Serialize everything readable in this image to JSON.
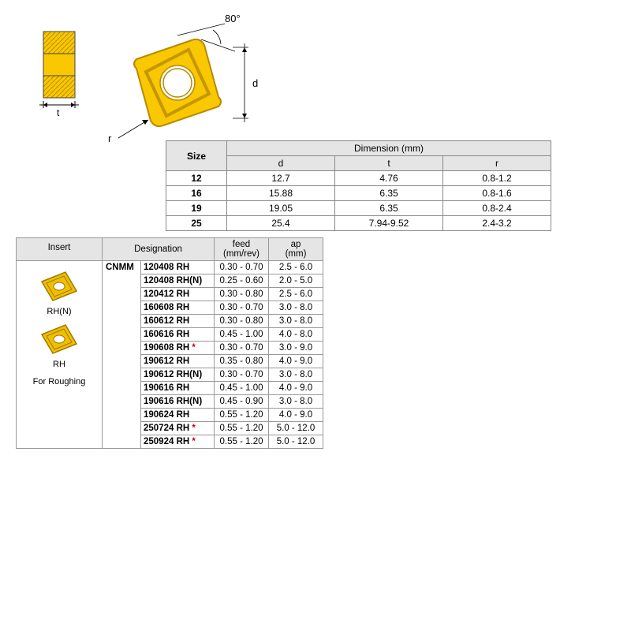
{
  "diagram": {
    "angle_label": "80°",
    "d_label": "d",
    "t_label": "t",
    "r_label": "r",
    "insert_color": "#f9c800",
    "insert_outline": "#b88a00"
  },
  "dim_table": {
    "header_size": "Size",
    "header_group": "Dimension (mm)",
    "columns": [
      "d",
      "t",
      "r"
    ],
    "rows": [
      {
        "size": "12",
        "d": "12.7",
        "t": "4.76",
        "r": "0.8-1.2"
      },
      {
        "size": "16",
        "d": "15.88",
        "t": "6.35",
        "r": "0.8-1.6"
      },
      {
        "size": "19",
        "d": "19.05",
        "t": "6.35",
        "r": "0.8-2.4"
      },
      {
        "size": "25",
        "d": "25.4",
        "t": "7.94-9.52",
        "r": "2.4-3.2"
      }
    ]
  },
  "spec_table": {
    "header_insert": "Insert",
    "header_designation": "Designation",
    "header_feed": "feed\n(mm/rev)",
    "header_ap": "ap\n(mm)",
    "group": "CNMM",
    "insert_labels": [
      "RH(N)",
      "RH",
      "For Roughing"
    ],
    "rows": [
      {
        "code": "120408 RH",
        "star": false,
        "feed": "0.30 - 0.70",
        "ap": "2.5 - 6.0"
      },
      {
        "code": "120408 RH(N)",
        "star": false,
        "feed": "0.25 - 0.60",
        "ap": "2.0 - 5.0"
      },
      {
        "code": "120412 RH",
        "star": false,
        "feed": "0.30 - 0.80",
        "ap": "2.5 - 6.0"
      },
      {
        "code": "160608 RH",
        "star": false,
        "feed": "0.30 - 0.70",
        "ap": "3.0 - 8.0"
      },
      {
        "code": "160612 RH",
        "star": false,
        "feed": "0.30 - 0.80",
        "ap": "3.0 - 8.0"
      },
      {
        "code": "160616 RH",
        "star": false,
        "feed": "0.45 - 1.00",
        "ap": "4.0 - 8.0"
      },
      {
        "code": "190608 RH",
        "star": true,
        "feed": "0.30 - 0.70",
        "ap": "3.0 - 9.0"
      },
      {
        "code": "190612 RH",
        "star": false,
        "feed": "0.35 - 0.80",
        "ap": "4.0 - 9.0"
      },
      {
        "code": "190612 RH(N)",
        "star": false,
        "feed": "0.30 - 0.70",
        "ap": "3.0 - 8.0"
      },
      {
        "code": "190616 RH",
        "star": false,
        "feed": "0.45 - 1.00",
        "ap": "4.0 - 9.0"
      },
      {
        "code": "190616 RH(N)",
        "star": false,
        "feed": "0.45 - 0.90",
        "ap": "3.0 - 8.0"
      },
      {
        "code": "190624 RH",
        "star": false,
        "feed": "0.55 - 1.20",
        "ap": "4.0 - 9.0"
      },
      {
        "code": "250724 RH",
        "star": true,
        "feed": "0.55 - 1.20",
        "ap": "5.0 - 12.0"
      },
      {
        "code": "250924 RH",
        "star": true,
        "feed": "0.55 - 1.20",
        "ap": "5.0 - 12.0"
      }
    ]
  }
}
